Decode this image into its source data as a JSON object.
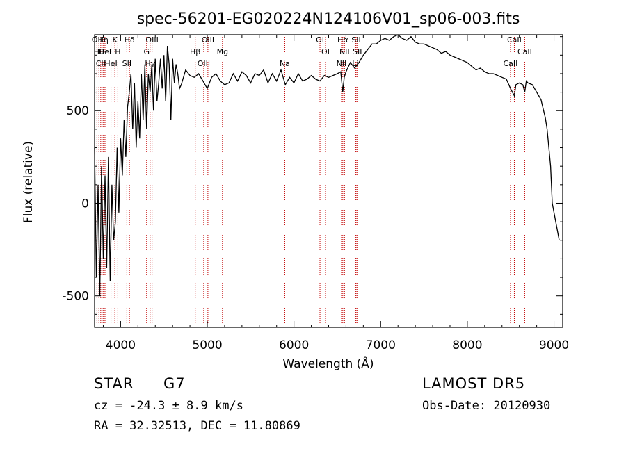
{
  "chart_data": {
    "type": "line",
    "title": "spec-56201-EG020224N124106V01_sp06-003.fits",
    "xlabel": "Wavelength (Å)",
    "ylabel": "Flux (relative)",
    "xlim": [
      3700,
      9100
    ],
    "ylim": [
      -670,
      910
    ],
    "x_ticks": [
      4000,
      5000,
      6000,
      7000,
      8000,
      9000
    ],
    "y_ticks": [
      -500,
      0,
      500
    ],
    "grid": false,
    "lines": [
      {
        "wave": 3727,
        "label": "OII"
      },
      {
        "wave": 3750,
        "label": "Hθ"
      },
      {
        "wave": 3771,
        "label": "CII"
      },
      {
        "wave": 3798,
        "label": "Hη"
      },
      {
        "wave": 3820,
        "label": "HeI"
      },
      {
        "wave": 3889,
        "label": "HeI"
      },
      {
        "wave": 3934,
        "label": "K"
      },
      {
        "wave": 3968,
        "label": "H"
      },
      {
        "wave": 4072,
        "label": "SII"
      },
      {
        "wave": 4102,
        "label": "Hδ"
      },
      {
        "wave": 4300,
        "label": "G"
      },
      {
        "wave": 4340,
        "label": "Hγ"
      },
      {
        "wave": 4363,
        "label": "OIII"
      },
      {
        "wave": 4861,
        "label": "Hβ"
      },
      {
        "wave": 4959,
        "label": "OIII"
      },
      {
        "wave": 5007,
        "label": "OIII"
      },
      {
        "wave": 5175,
        "label": "Mg"
      },
      {
        "wave": 5894,
        "label": "Na"
      },
      {
        "wave": 6300,
        "label": "OI"
      },
      {
        "wave": 6364,
        "label": "OI"
      },
      {
        "wave": 6548,
        "label": "NII"
      },
      {
        "wave": 6563,
        "label": "Hα"
      },
      {
        "wave": 6583,
        "label": "NII"
      },
      {
        "wave": 6708,
        "label": "Li"
      },
      {
        "wave": 6717,
        "label": "SII"
      },
      {
        "wave": 6731,
        "label": "SII"
      },
      {
        "wave": 8498,
        "label": "CaII"
      },
      {
        "wave": 8542,
        "label": "CaII"
      },
      {
        "wave": 8662,
        "label": "CaII"
      }
    ],
    "series": [
      {
        "x": [
          3700,
          3720,
          3740,
          3760,
          3780,
          3800,
          3820,
          3840,
          3860,
          3880,
          3900,
          3920,
          3940,
          3960,
          3980,
          4000,
          4020,
          4040,
          4060,
          4080,
          4100,
          4120,
          4140,
          4160,
          4180,
          4200,
          4220,
          4240,
          4260,
          4280,
          4300,
          4320,
          4340,
          4360,
          4380,
          4400,
          4420,
          4440,
          4460,
          4480,
          4500,
          4520,
          4540,
          4560,
          4580,
          4600,
          4620,
          4640,
          4660,
          4680,
          4700,
          4750,
          4800,
          4850,
          4900,
          4950,
          5000,
          5050,
          5100,
          5150,
          5200,
          5250,
          5300,
          5350,
          5400,
          5450,
          5500,
          5550,
          5600,
          5650,
          5700,
          5750,
          5800,
          5850,
          5900,
          5950,
          6000,
          6050,
          6100,
          6150,
          6200,
          6250,
          6300,
          6350,
          6400,
          6450,
          6500,
          6540,
          6563,
          6580,
          6600,
          6650,
          6700,
          6750,
          6800,
          6850,
          6900,
          6950,
          7000,
          7050,
          7100,
          7150,
          7200,
          7250,
          7300,
          7350,
          7400,
          7450,
          7500,
          7550,
          7600,
          7650,
          7700,
          7750,
          7800,
          7850,
          7900,
          7950,
          8000,
          8050,
          8100,
          8150,
          8200,
          8250,
          8300,
          8350,
          8400,
          8450,
          8498,
          8520,
          8542,
          8560,
          8600,
          8640,
          8662,
          8680,
          8700,
          8750,
          8800,
          8850,
          8900,
          8920,
          8940,
          8960,
          8980,
          9000,
          9020,
          9040,
          9060
        ],
        "y": [
          300,
          -400,
          100,
          -500,
          200,
          -300,
          150,
          -350,
          250,
          -420,
          100,
          -200,
          -100,
          300,
          -50,
          350,
          150,
          450,
          250,
          520,
          600,
          700,
          400,
          650,
          300,
          550,
          350,
          700,
          450,
          750,
          400,
          700,
          600,
          750,
          500,
          780,
          550,
          650,
          780,
          620,
          800,
          550,
          850,
          750,
          450,
          780,
          650,
          750,
          700,
          620,
          640,
          720,
          690,
          680,
          700,
          660,
          620,
          680,
          700,
          660,
          640,
          650,
          700,
          660,
          710,
          690,
          650,
          700,
          690,
          720,
          650,
          700,
          660,
          720,
          640,
          680,
          650,
          700,
          660,
          670,
          690,
          670,
          660,
          690,
          680,
          690,
          700,
          710,
          600,
          680,
          710,
          760,
          730,
          760,
          800,
          830,
          860,
          860,
          880,
          890,
          880,
          900,
          910,
          890,
          880,
          900,
          870,
          860,
          860,
          850,
          840,
          830,
          810,
          820,
          800,
          790,
          780,
          770,
          760,
          740,
          720,
          730,
          710,
          700,
          700,
          690,
          680,
          670,
          620,
          600,
          580,
          640,
          650,
          640,
          600,
          660,
          650,
          640,
          600,
          560,
          460,
          400,
          300,
          200,
          0,
          -50,
          -100,
          -150,
          -200
        ]
      }
    ],
    "object_class": "STAR",
    "subclass": "G7",
    "survey": "LAMOST DR5",
    "cz_text": "cz = -24.3 ± 8.9 km/s",
    "obs_date_text": "Obs-Date: 20120930",
    "coords_text": "RA =  32.32513, DEC =  11.80869"
  }
}
